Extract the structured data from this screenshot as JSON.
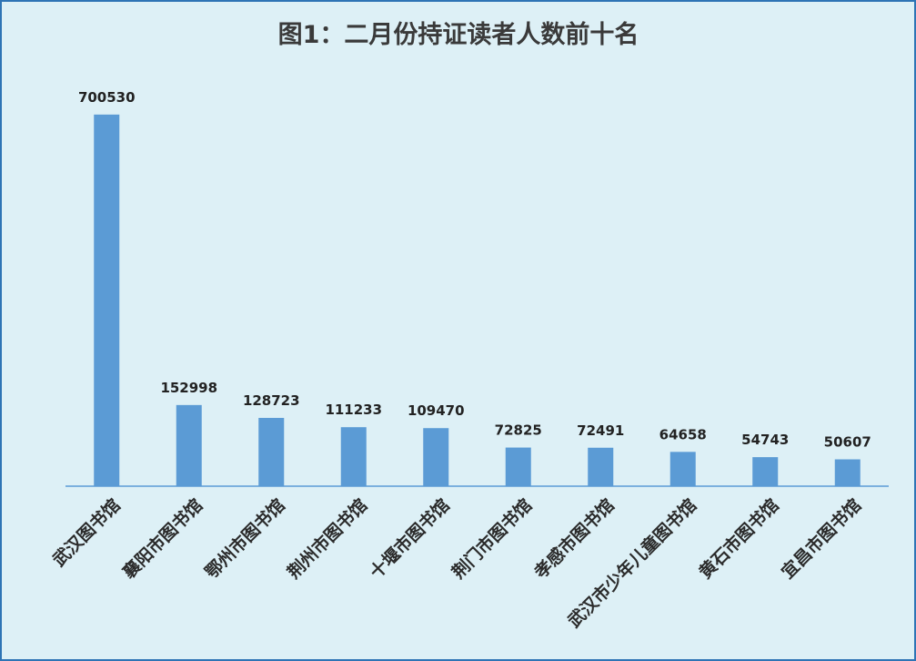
{
  "chart_data": {
    "type": "bar",
    "title": "图1：二月份持证读者人数前十名",
    "xlabel": "",
    "ylabel": "",
    "ylim": [
      0,
      750000
    ],
    "grid": false,
    "legend": "none",
    "categories": [
      "武汉图书馆",
      "襄阳市图书馆",
      "鄂州市图书馆",
      "荆州市图书馆",
      "十堰市图书馆",
      "荆门市图书馆",
      "孝感市图书馆",
      "武汉市少年儿童图书馆",
      "黄石市图书馆",
      "宜昌市图书馆"
    ],
    "values": [
      700530,
      152998,
      128723,
      111233,
      109470,
      72825,
      72491,
      64658,
      54743,
      50607
    ],
    "data_labels": [
      "700530",
      "152998",
      "128723",
      "111233",
      "109470",
      "72825",
      "72491",
      "64658",
      "54743",
      "50607"
    ],
    "colors": {
      "bar": "#5b9bd5",
      "axis": "#5b9bd5",
      "background": "#ddf0f6",
      "border": "#2e74b5"
    }
  }
}
